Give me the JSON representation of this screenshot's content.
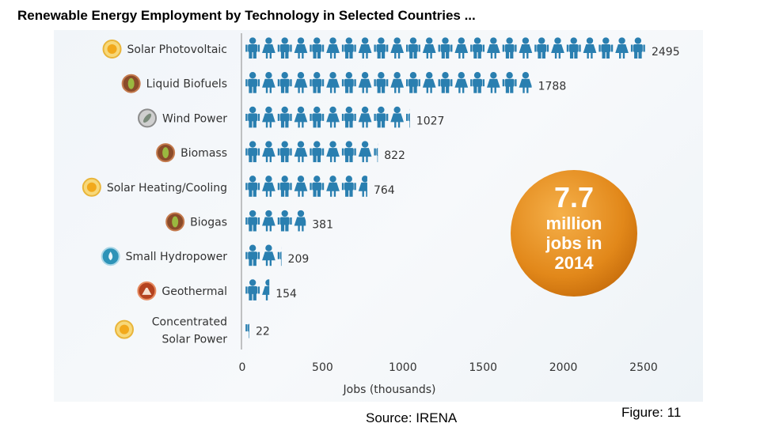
{
  "title": "Renewable Energy Employment by Technology in Selected Countries ...",
  "source": "Source: IRENA",
  "figure_label": "Figure: 11",
  "badge": {
    "number": "7.7",
    "line1": "million",
    "line2": "jobs in",
    "line3": "2014"
  },
  "colors": {
    "person": "#2a7fb0",
    "badge": "#e2881a",
    "axis": "#888888",
    "text": "#333333"
  },
  "chart_data": {
    "type": "bar",
    "categories": [
      "Solar Photovoltaic",
      "Liquid Biofuels",
      "Wind Power",
      "Biomass",
      "Solar Heating/Cooling",
      "Biogas",
      "Small Hydropower",
      "Geothermal",
      "Concentrated Solar Power"
    ],
    "values": [
      2495,
      1788,
      1027,
      822,
      764,
      381,
      209,
      154,
      22
    ],
    "icons": [
      "sun-icon",
      "leaf-icon",
      "turbine-icon",
      "leaf-icon",
      "sun-icon",
      "leaf-icon",
      "water-drop-icon",
      "volcano-icon",
      "sun-icon"
    ],
    "xlabel": "Jobs (thousands)",
    "ylabel": "",
    "xlim": [
      0,
      2500
    ],
    "xticks": [
      0,
      500,
      1000,
      1500,
      2000,
      2500
    ],
    "grid": false
  }
}
